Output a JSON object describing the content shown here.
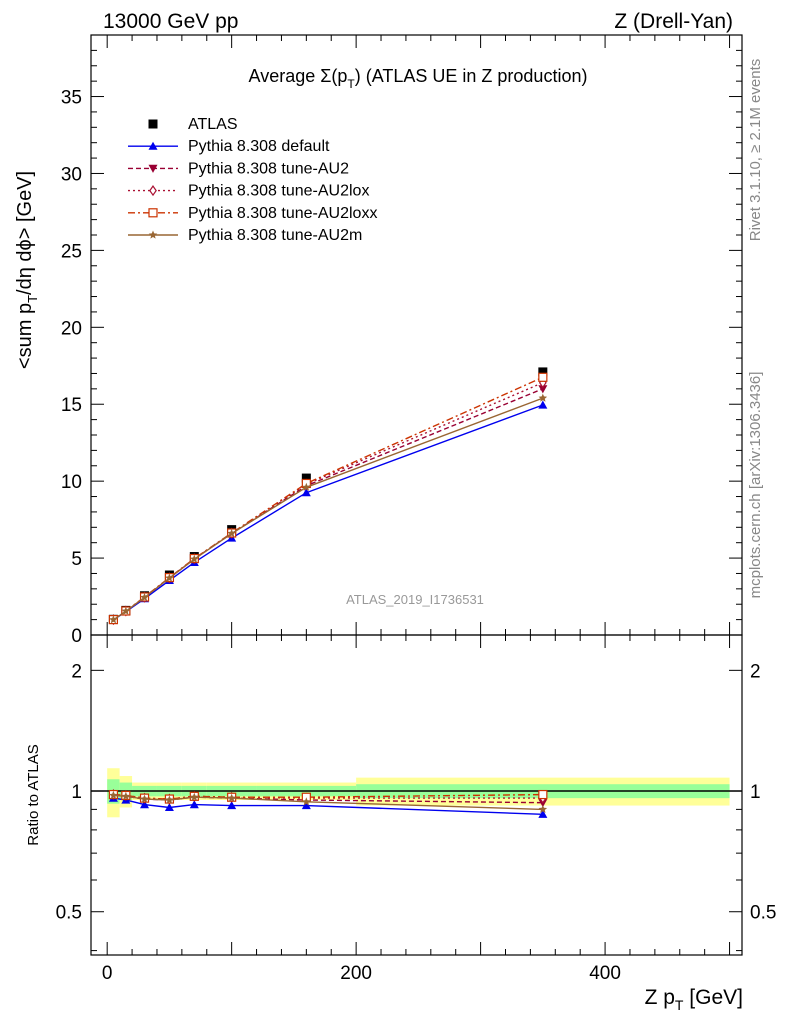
{
  "header": {
    "left": "13000 GeV pp",
    "right": "Z (Drell-Yan)"
  },
  "side_labels": {
    "rivet": "Rivet 3.1.10, ≥ 2.1M events",
    "mcplots": "mcplots.cern.ch [arXiv:1306.3436]"
  },
  "chart_data": {
    "type": "scatter",
    "title": "Average Σ(p_T) (ATLAS UE in Z production)",
    "analysis_id": "ATLAS_2019_I1736531",
    "xlabel": "Z p_T [GeV]",
    "ylabel": "<sum p_T/dη dϕ> [GeV]",
    "ratio_ylabel": "Ratio to ATLAS",
    "xlim": [
      -13,
      510
    ],
    "ylim": [
      0,
      39
    ],
    "ratio_ylim": [
      0.39,
      2.45
    ],
    "ratio_log": true,
    "x_ticks": [
      0,
      200,
      400
    ],
    "y_ticks": [
      0,
      5,
      10,
      15,
      20,
      25,
      30,
      35
    ],
    "ratio_ticks": [
      0.5,
      1,
      2
    ],
    "legend_position": "top-left",
    "x": [
      5,
      15,
      30,
      50,
      70,
      100,
      160,
      350
    ],
    "band_edges": [
      0,
      10,
      20,
      40,
      60,
      80,
      120,
      200,
      500
    ],
    "band_inner": [
      0.07,
      0.05,
      0.03,
      0.03,
      0.03,
      0.03,
      0.03,
      0.04
    ],
    "band_outer": [
      0.14,
      0.09,
      0.05,
      0.05,
      0.05,
      0.05,
      0.05,
      0.08
    ],
    "series": [
      {
        "name": "ATLAS",
        "color": "#000000",
        "marker": "square",
        "dash": "",
        "values": [
          1.02,
          1.6,
          2.55,
          3.9,
          5.1,
          6.85,
          10.2,
          17.1
        ],
        "ratio": [
          1,
          1,
          1,
          1,
          1,
          1,
          1,
          1
        ]
      },
      {
        "name": "Pythia 8.308 default",
        "color": "#0000ee",
        "marker": "triangle-up",
        "dash": "",
        "values": [
          0.98,
          1.52,
          2.36,
          3.55,
          4.72,
          6.3,
          9.25,
          14.95
        ],
        "ratio": [
          0.96,
          0.95,
          0.925,
          0.91,
          0.925,
          0.92,
          0.92,
          0.875
        ]
      },
      {
        "name": "Pythia 8.308 tune-AU2",
        "color": "#990033",
        "marker": "triangle-down",
        "dash": "5,3",
        "values": [
          0.99,
          1.55,
          2.45,
          3.7,
          4.95,
          6.6,
          9.7,
          16.0
        ],
        "ratio": [
          0.975,
          0.97,
          0.955,
          0.95,
          0.965,
          0.96,
          0.95,
          0.935
        ]
      },
      {
        "name": "Pythia 8.308 tune-AU2lox",
        "color": "#aa1133",
        "marker": "diamond-open",
        "dash": "2,3",
        "values": [
          1.0,
          1.56,
          2.46,
          3.72,
          4.96,
          6.62,
          9.8,
          16.4
        ],
        "ratio": [
          0.98,
          0.975,
          0.96,
          0.955,
          0.97,
          0.965,
          0.96,
          0.96
        ]
      },
      {
        "name": "Pythia 8.308 tune-AU2loxx",
        "color": "#cc3300",
        "marker": "square-open",
        "dash": "7,3,2,3",
        "values": [
          1.0,
          1.56,
          2.47,
          3.73,
          4.97,
          6.63,
          9.85,
          16.75
        ],
        "ratio": [
          0.98,
          0.975,
          0.96,
          0.955,
          0.97,
          0.965,
          0.965,
          0.98
        ]
      },
      {
        "name": "Pythia 8.308 tune-AU2m",
        "color": "#996633",
        "marker": "star",
        "dash": "",
        "values": [
          0.99,
          1.55,
          2.44,
          3.7,
          4.93,
          6.6,
          9.6,
          15.4
        ],
        "ratio": [
          0.975,
          0.97,
          0.955,
          0.95,
          0.965,
          0.96,
          0.94,
          0.9
        ]
      }
    ]
  }
}
